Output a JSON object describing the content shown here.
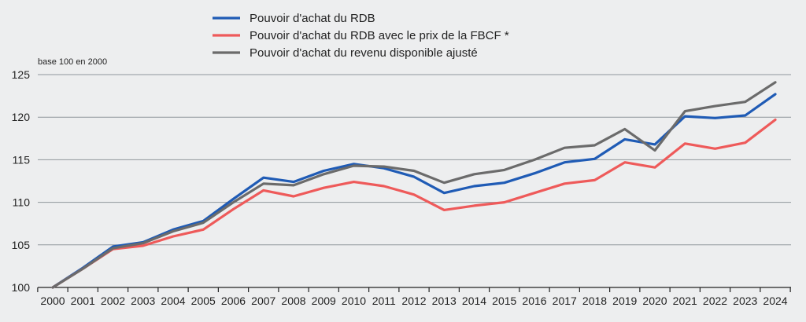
{
  "chart_data": {
    "type": "line",
    "unit_label": "base 100 en 2000",
    "x": [
      "2000",
      "2001",
      "2002",
      "2003",
      "2004",
      "2005",
      "2006",
      "2007",
      "2008",
      "2009",
      "2010",
      "2011",
      "2012",
      "2013",
      "2014",
      "2015",
      "2016",
      "2017",
      "2018",
      "2019",
      "2020",
      "2021",
      "2022",
      "2023",
      "2024"
    ],
    "ylim": [
      100,
      125
    ],
    "yticks": [
      "100",
      "105",
      "110",
      "115",
      "120",
      "125"
    ],
    "grid": true,
    "legend_position": "top-center",
    "series": [
      {
        "name": "Pouvoir d'achat du RDB",
        "color": "#1f5bb5",
        "values": [
          100,
          102.3,
          104.8,
          105.3,
          106.8,
          107.8,
          110.4,
          112.9,
          112.4,
          113.7,
          114.5,
          114.0,
          113.0,
          111.1,
          111.9,
          112.3,
          113.4,
          114.7,
          115.1,
          117.4,
          116.8,
          120.1,
          119.9,
          120.2,
          122.7
        ]
      },
      {
        "name": "Pouvoir d'achat du RDB avec le prix de la FBCF *",
        "color": "#ee5a5a",
        "values": [
          100,
          102.2,
          104.5,
          104.9,
          106.0,
          106.8,
          109.2,
          111.4,
          110.7,
          111.7,
          112.4,
          111.9,
          110.9,
          109.1,
          109.6,
          110.0,
          111.1,
          112.2,
          112.6,
          114.7,
          114.1,
          116.9,
          116.3,
          117.0,
          119.7
        ]
      },
      {
        "name": "Pouvoir d'achat du revenu disponible ajusté",
        "color": "#6b6b6b",
        "values": [
          100,
          102.2,
          104.6,
          105.2,
          106.6,
          107.6,
          110.0,
          112.2,
          112.0,
          113.3,
          114.3,
          114.2,
          113.7,
          112.3,
          113.3,
          113.8,
          115.0,
          116.4,
          116.7,
          118.6,
          116.1,
          120.7,
          121.3,
          121.8,
          124.1
        ]
      }
    ]
  }
}
